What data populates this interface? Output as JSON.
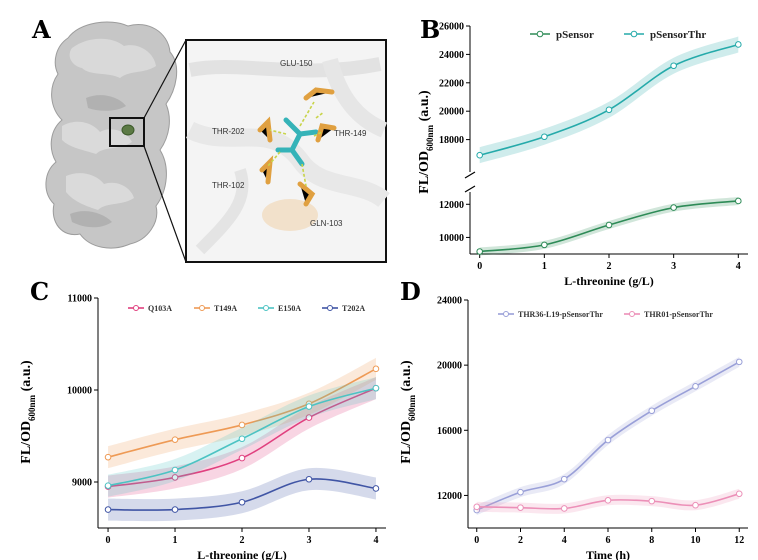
{
  "panel_labels": {
    "a": "A",
    "b": "B",
    "c": "C",
    "d": "D"
  },
  "structure": {
    "residues": [
      "GLU-150",
      "THR-202",
      "THR-149",
      "THR-102",
      "GLN-103"
    ],
    "colors": {
      "surface": "#c9c9c9",
      "ligand": "#35b3b8",
      "residue": "#e0a040",
      "hbond": "#c8d44a"
    }
  },
  "chart_data": [
    {
      "id": "B",
      "type": "line",
      "xlabel": "L-threonine (g/L)",
      "ylabel": "FL/OD600nm (a.u.)",
      "ylabel_main": "FL/OD",
      "ylabel_sub": "600nm",
      "ylabel_unit": " (a.u.)",
      "x": [
        0,
        1,
        2,
        3,
        4
      ],
      "xticks": [
        "0",
        "1",
        "2",
        "3",
        "4"
      ],
      "axis_break": true,
      "ylim_lower": [
        9000,
        12500
      ],
      "ylim_upper": [
        16000,
        26000
      ],
      "yticks_lower": [
        "10000",
        "12000"
      ],
      "yticks_upper": [
        "18000",
        "20000",
        "22000",
        "24000",
        "26000"
      ],
      "legend_position": "top",
      "series": [
        {
          "name": "pSensor",
          "color": "#2e8b57",
          "values": [
            9150,
            9550,
            10750,
            11800,
            12200
          ]
        },
        {
          "name": "pSensorThr",
          "color": "#25aaaa",
          "values": [
            16900,
            18200,
            20100,
            23200,
            24700
          ]
        }
      ]
    },
    {
      "id": "C",
      "type": "line",
      "xlabel": "L-threonine (g/L)",
      "ylabel": "FL/OD600nm (a.u.)",
      "ylabel_main": "FL/OD",
      "ylabel_sub": "600nm",
      "ylabel_unit": " (a.u.)",
      "x": [
        0,
        1,
        2,
        3,
        4
      ],
      "xticks": [
        "0",
        "1",
        "2",
        "3",
        "4"
      ],
      "ylim": [
        8500,
        11000
      ],
      "yticks": [
        "9000",
        "10000",
        "11000"
      ],
      "legend_position": "top",
      "series": [
        {
          "name": "Q103A",
          "color": "#e0407f",
          "values": [
            8950,
            9050,
            9260,
            9700,
            10020
          ]
        },
        {
          "name": "T149A",
          "color": "#ee9a55",
          "values": [
            9270,
            9460,
            9620,
            9850,
            10230
          ]
        },
        {
          "name": "E150A",
          "color": "#4cc3c3",
          "values": [
            8960,
            9130,
            9470,
            9820,
            10020
          ]
        },
        {
          "name": "T202A",
          "color": "#4055a5",
          "values": [
            8700,
            8700,
            8780,
            9030,
            8930
          ]
        }
      ]
    },
    {
      "id": "D",
      "type": "line",
      "xlabel": "Time (h)",
      "ylabel": "FL/OD600nm (a.u.)",
      "ylabel_main": "FL/OD",
      "ylabel_sub": "600nm",
      "ylabel_unit": " (a.u.)",
      "x": [
        0,
        2,
        4,
        6,
        8,
        10,
        12
      ],
      "xticks": [
        "0",
        "2",
        "4",
        "6",
        "8",
        "10",
        "12"
      ],
      "ylim": [
        10000,
        24000
      ],
      "yticks": [
        "12000",
        "16000",
        "20000",
        "24000"
      ],
      "legend_position": "top",
      "series": [
        {
          "name": "THR36-L19-pSensorThr",
          "color": "#9aa0d8",
          "values": [
            11100,
            12200,
            13000,
            15400,
            17200,
            18700,
            20200
          ]
        },
        {
          "name": "THR01-pSensorThr",
          "color": "#ec90b8",
          "values": [
            11300,
            11250,
            11200,
            11700,
            11650,
            11400,
            12100
          ]
        }
      ]
    }
  ]
}
